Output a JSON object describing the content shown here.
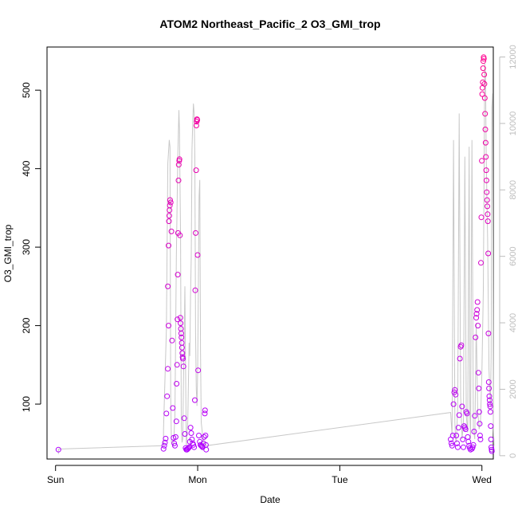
{
  "chart_data": {
    "type": "scatter",
    "title": "ATOM2 Northeast_Pacific_2 O3_GMI_trop",
    "xlabel": "Date",
    "ylabel": "O3_GMI_trop",
    "x_ticks": [
      "Sun",
      "Mon",
      "Tue",
      "Wed"
    ],
    "x_range_days": [
      -0.06,
      3.08
    ],
    "ylim": [
      30,
      555
    ],
    "y_ticks": [
      100,
      200,
      300,
      400,
      500
    ],
    "y2lim": [
      -100,
      12300
    ],
    "y2_ticks": [
      0,
      2000,
      4000,
      6000,
      8000,
      10000,
      12000
    ],
    "grid": false,
    "colors": {
      "line_series": "#c8c8c8",
      "point_low": "#b000ff",
      "point_high": "#ff0090"
    },
    "series": [
      {
        "kind": "points",
        "values": [
          [
            0.02,
            42
          ],
          [
            0.76,
            43
          ],
          [
            0.765,
            47
          ],
          [
            0.77,
            51
          ],
          [
            0.775,
            56
          ],
          [
            0.78,
            88
          ],
          [
            0.785,
            110
          ],
          [
            0.79,
            145
          ],
          [
            0.795,
            200
          ],
          [
            0.79,
            250
          ],
          [
            0.795,
            302
          ],
          [
            0.798,
            333
          ],
          [
            0.8,
            340
          ],
          [
            0.802,
            347
          ],
          [
            0.804,
            353
          ],
          [
            0.806,
            360
          ],
          [
            0.81,
            357
          ],
          [
            0.815,
            320
          ],
          [
            0.82,
            181
          ],
          [
            0.825,
            95
          ],
          [
            0.83,
            57
          ],
          [
            0.835,
            50
          ],
          [
            0.84,
            47
          ],
          [
            0.845,
            58
          ],
          [
            0.85,
            78
          ],
          [
            0.852,
            126
          ],
          [
            0.855,
            150
          ],
          [
            0.858,
            208
          ],
          [
            0.86,
            265
          ],
          [
            0.862,
            318
          ],
          [
            0.865,
            385
          ],
          [
            0.867,
            405
          ],
          [
            0.87,
            410
          ],
          [
            0.872,
            412
          ],
          [
            0.875,
            315
          ],
          [
            0.878,
            210
          ],
          [
            0.88,
            203
          ],
          [
            0.882,
            196
          ],
          [
            0.884,
            190
          ],
          [
            0.886,
            185
          ],
          [
            0.888,
            178
          ],
          [
            0.89,
            172
          ],
          [
            0.892,
            165
          ],
          [
            0.894,
            160
          ],
          [
            0.896,
            158
          ],
          [
            0.9,
            148
          ],
          [
            0.905,
            82
          ],
          [
            0.91,
            62
          ],
          [
            0.915,
            44
          ],
          [
            0.92,
            42
          ],
          [
            0.925,
            42
          ],
          [
            0.93,
            43
          ],
          [
            0.935,
            44
          ],
          [
            0.94,
            45
          ],
          [
            0.945,
            52
          ],
          [
            0.95,
            70
          ],
          [
            0.955,
            63
          ],
          [
            0.96,
            55
          ],
          [
            0.965,
            50
          ],
          [
            0.97,
            48
          ],
          [
            0.975,
            45
          ],
          [
            0.98,
            105
          ],
          [
            0.983,
            245
          ],
          [
            0.986,
            318
          ],
          [
            0.989,
            398
          ],
          [
            0.991,
            455
          ],
          [
            0.993,
            460
          ],
          [
            0.995,
            463
          ],
          [
            0.997,
            462
          ],
          [
            1.0,
            290
          ],
          [
            1.003,
            143
          ],
          [
            1.008,
            60
          ],
          [
            1.015,
            52
          ],
          [
            1.02,
            48
          ],
          [
            1.025,
            47
          ],
          [
            1.03,
            46
          ],
          [
            1.035,
            45
          ],
          [
            1.04,
            50
          ],
          [
            1.045,
            58
          ],
          [
            1.05,
            88
          ],
          [
            1.052,
            92
          ],
          [
            1.055,
            60
          ],
          [
            1.058,
            48
          ],
          [
            1.06,
            42
          ],
          [
            2.78,
            55
          ],
          [
            2.785,
            50
          ],
          [
            2.79,
            47
          ],
          [
            2.795,
            60
          ],
          [
            2.8,
            100
          ],
          [
            2.805,
            115
          ],
          [
            2.81,
            118
          ],
          [
            2.815,
            112
          ],
          [
            2.82,
            60
          ],
          [
            2.825,
            50
          ],
          [
            2.83,
            45
          ],
          [
            2.835,
            70
          ],
          [
            2.84,
            86
          ],
          [
            2.845,
            158
          ],
          [
            2.85,
            173
          ],
          [
            2.855,
            175
          ],
          [
            2.86,
            97
          ],
          [
            2.865,
            55
          ],
          [
            2.87,
            45
          ],
          [
            2.875,
            72
          ],
          [
            2.88,
            70
          ],
          [
            2.885,
            68
          ],
          [
            2.89,
            90
          ],
          [
            2.895,
            88
          ],
          [
            2.9,
            58
          ],
          [
            2.905,
            52
          ],
          [
            2.91,
            47
          ],
          [
            2.915,
            44
          ],
          [
            2.92,
            42
          ],
          [
            2.93,
            43
          ],
          [
            2.935,
            45
          ],
          [
            2.94,
            48
          ],
          [
            2.945,
            65
          ],
          [
            2.95,
            85
          ],
          [
            2.955,
            185
          ],
          [
            2.96,
            210
          ],
          [
            2.963,
            215
          ],
          [
            2.966,
            220
          ],
          [
            2.969,
            230
          ],
          [
            2.972,
            200
          ],
          [
            2.975,
            140
          ],
          [
            2.978,
            120
          ],
          [
            2.981,
            90
          ],
          [
            2.984,
            75
          ],
          [
            2.987,
            60
          ],
          [
            2.99,
            55
          ],
          [
            2.993,
            280
          ],
          [
            2.996,
            338
          ],
          [
            2.999,
            410
          ],
          [
            3.002,
            495
          ],
          [
            3.004,
            503
          ],
          [
            3.006,
            510
          ],
          [
            3.008,
            528
          ],
          [
            3.01,
            537
          ],
          [
            3.012,
            542
          ],
          [
            3.014,
            540
          ],
          [
            3.016,
            520
          ],
          [
            3.018,
            508
          ],
          [
            3.02,
            490
          ],
          [
            3.022,
            470
          ],
          [
            3.024,
            450
          ],
          [
            3.026,
            433
          ],
          [
            3.028,
            415
          ],
          [
            3.03,
            398
          ],
          [
            3.032,
            385
          ],
          [
            3.034,
            370
          ],
          [
            3.036,
            360
          ],
          [
            3.038,
            352
          ],
          [
            3.04,
            342
          ],
          [
            3.042,
            333
          ],
          [
            3.044,
            292
          ],
          [
            3.046,
            190
          ],
          [
            3.048,
            128
          ],
          [
            3.05,
            120
          ],
          [
            3.052,
            110
          ],
          [
            3.054,
            105
          ],
          [
            3.056,
            100
          ],
          [
            3.058,
            97
          ],
          [
            3.06,
            90
          ],
          [
            3.062,
            72
          ],
          [
            3.064,
            55
          ],
          [
            3.066,
            45
          ],
          [
            3.068,
            42
          ],
          [
            3.07,
            40
          ]
        ]
      },
      {
        "kind": "line",
        "axis": "right",
        "values": [
          [
            0.02,
            50
          ],
          [
            0.02,
            200
          ],
          [
            0.76,
            300
          ],
          [
            0.76,
            800
          ],
          [
            0.78,
            3800
          ],
          [
            0.79,
            8800
          ],
          [
            0.8,
            9500
          ],
          [
            0.805,
            9300
          ],
          [
            0.81,
            1800
          ],
          [
            0.815,
            400
          ],
          [
            0.83,
            300
          ],
          [
            0.84,
            1200
          ],
          [
            0.85,
            6000
          ],
          [
            0.86,
            9000
          ],
          [
            0.868,
            10400
          ],
          [
            0.872,
            9800
          ],
          [
            0.88,
            6500
          ],
          [
            0.885,
            900
          ],
          [
            0.89,
            400
          ],
          [
            0.895,
            500
          ],
          [
            0.9,
            2200
          ],
          [
            0.905,
            3500
          ],
          [
            0.91,
            5100
          ],
          [
            0.915,
            2500
          ],
          [
            0.92,
            300
          ],
          [
            0.93,
            1000
          ],
          [
            0.94,
            3400
          ],
          [
            0.945,
            3000
          ],
          [
            0.95,
            4800
          ],
          [
            0.955,
            6000
          ],
          [
            0.96,
            9200
          ],
          [
            0.965,
            10000
          ],
          [
            0.97,
            10600
          ],
          [
            0.975,
            10300
          ],
          [
            0.98,
            9000
          ],
          [
            0.985,
            3700
          ],
          [
            0.99,
            2000
          ],
          [
            0.995,
            1500
          ],
          [
            1.0,
            2500
          ],
          [
            1.005,
            5000
          ],
          [
            1.01,
            7800
          ],
          [
            1.015,
            8300
          ],
          [
            1.02,
            3200
          ],
          [
            1.025,
            1000
          ],
          [
            1.04,
            400
          ],
          [
            1.06,
            300
          ],
          [
            2.78,
            1300
          ],
          [
            2.79,
            600
          ],
          [
            2.8,
            9500
          ],
          [
            2.81,
            1000
          ],
          [
            2.815,
            500
          ],
          [
            2.82,
            400
          ],
          [
            2.83,
            1500
          ],
          [
            2.84,
            10300
          ],
          [
            2.85,
            1800
          ],
          [
            2.86,
            500
          ],
          [
            2.87,
            1000
          ],
          [
            2.88,
            9000
          ],
          [
            2.89,
            1200
          ],
          [
            2.9,
            700
          ],
          [
            2.91,
            9300
          ],
          [
            2.915,
            1200
          ],
          [
            2.92,
            500
          ],
          [
            2.93,
            9500
          ],
          [
            2.94,
            800
          ],
          [
            2.95,
            500
          ],
          [
            2.96,
            4000
          ],
          [
            2.97,
            1400
          ],
          [
            2.98,
            800
          ],
          [
            2.99,
            1000
          ],
          [
            3.0,
            2500
          ],
          [
            3.01,
            5000
          ],
          [
            3.02,
            11800
          ],
          [
            3.025,
            11500
          ],
          [
            3.03,
            9000
          ],
          [
            3.04,
            6500
          ],
          [
            3.05,
            2600
          ],
          [
            3.06,
            1500
          ],
          [
            3.065,
            3000
          ],
          [
            3.07,
            10500
          ],
          [
            3.075,
            10900
          ],
          [
            3.08,
            1000
          ],
          [
            3.085,
            300
          ]
        ]
      }
    ]
  }
}
